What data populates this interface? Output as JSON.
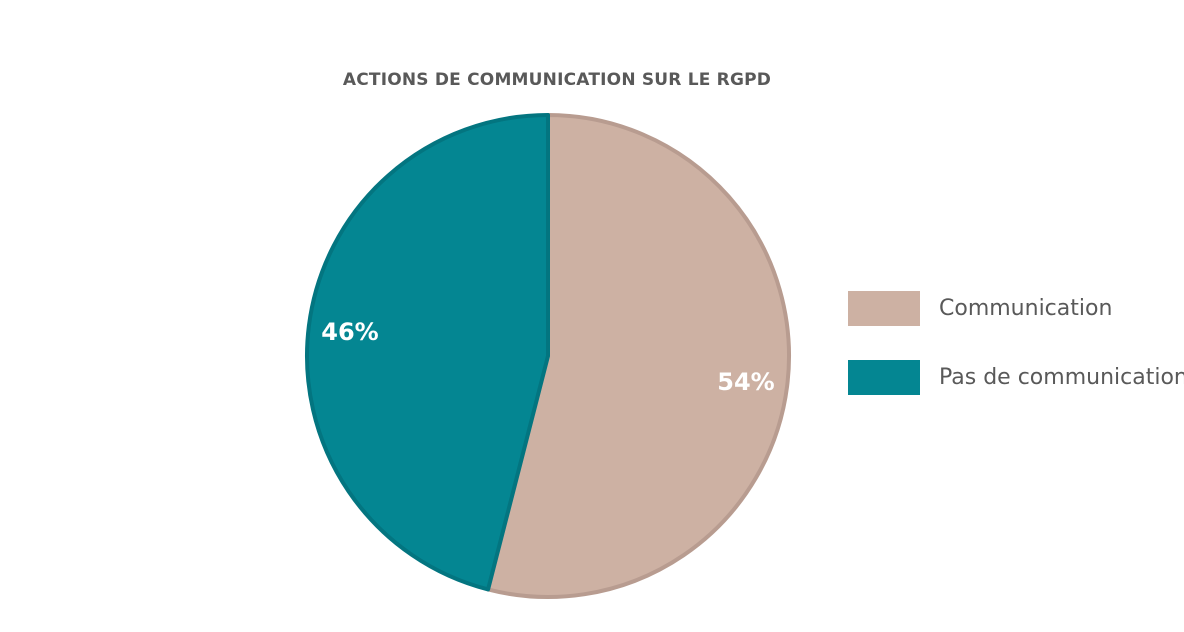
{
  "chart_data": {
    "type": "pie",
    "title": "ACTIONS DE COMMUNICATION SUR LE RGPD",
    "categories": [
      "Communication",
      "Pas de communication"
    ],
    "values": [
      54,
      46
    ],
    "labels": [
      "54%",
      "46%"
    ],
    "colors": [
      "#CDB1A3",
      "#048692"
    ],
    "border_colors": [
      "#B89C90",
      "#037580"
    ],
    "legend": "right"
  }
}
